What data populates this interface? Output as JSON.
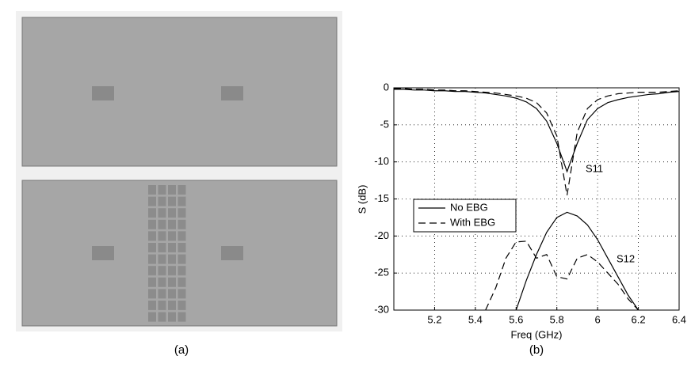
{
  "chart_data": {
    "type": "line",
    "xlabel": "Freq (GHz)",
    "ylabel": "S (dB)",
    "x": [
      5.0,
      5.05,
      5.1,
      5.15,
      5.2,
      5.25,
      5.3,
      5.35,
      5.4,
      5.45,
      5.5,
      5.55,
      5.6,
      5.65,
      5.7,
      5.75,
      5.8,
      5.85,
      5.9,
      5.95,
      6.0,
      6.05,
      6.1,
      6.15,
      6.2,
      6.25,
      6.3,
      6.35,
      6.4
    ],
    "series": [
      {
        "name": "No EBG",
        "color": "#000000",
        "dash": "solid",
        "s11": [
          -0.2,
          -0.2,
          -0.3,
          -0.3,
          -0.4,
          -0.4,
          -0.5,
          -0.5,
          -0.6,
          -0.7,
          -0.9,
          -1.1,
          -1.4,
          -1.9,
          -2.8,
          -4.5,
          -7.5,
          -11.3,
          -7.5,
          -4.3,
          -2.8,
          -2,
          -1.6,
          -1.3,
          -1.1,
          -0.9,
          -0.8,
          -0.6,
          -0.5
        ],
        "s12": [
          null,
          null,
          null,
          null,
          null,
          null,
          null,
          null,
          null,
          null,
          null,
          null,
          -30,
          -26,
          -22.5,
          -19.5,
          -17.5,
          -16.8,
          -17.3,
          -18.5,
          -20.5,
          -23,
          -25.5,
          -28,
          -30,
          null,
          null,
          null,
          null
        ]
      },
      {
        "name": "With EBG",
        "color": "#000000",
        "dash": "dashed",
        "s11": [
          -0.1,
          -0.1,
          -0.2,
          -0.2,
          -0.3,
          -0.3,
          -0.4,
          -0.4,
          -0.5,
          -0.6,
          -0.7,
          -0.9,
          -1.1,
          -1.4,
          -2,
          -3.4,
          -6.5,
          -14.5,
          -6,
          -2.8,
          -1.6,
          -1.1,
          -0.8,
          -0.7,
          -0.6,
          -0.6,
          -0.6,
          -0.5,
          -0.4
        ],
        "s12": [
          null,
          null,
          null,
          null,
          null,
          null,
          null,
          null,
          null,
          -30,
          -27,
          -23,
          -20.8,
          -20.7,
          -23,
          -22.5,
          -25.5,
          -25.8,
          -23,
          -22.5,
          -23.5,
          -25,
          -26.5,
          -28.5,
          -30,
          null,
          null,
          null,
          null
        ]
      }
    ],
    "annotations": [
      "S11",
      "S12"
    ],
    "xlim": [
      5.0,
      6.4
    ],
    "ylim": [
      -30,
      0
    ],
    "xticks": [
      5.2,
      5.4,
      5.6,
      5.8,
      6,
      6.2,
      6.4
    ],
    "yticks": [
      0,
      -5,
      -10,
      -15,
      -20,
      -25,
      -30
    ],
    "grid": true,
    "legend": "lower-left"
  },
  "captions": [
    "(a)",
    "(b)"
  ]
}
